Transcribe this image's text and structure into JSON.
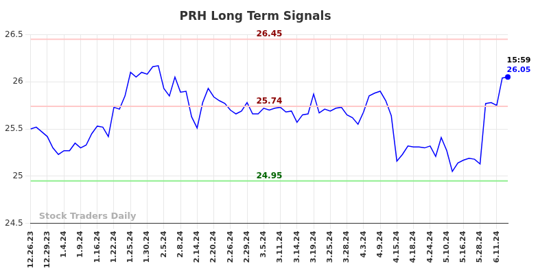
{
  "chart_data": {
    "type": "line",
    "title": "PRH Long Term Signals",
    "categories": [
      "12.26.23",
      null,
      null,
      "12.29.23",
      null,
      null,
      "1.4.24",
      null,
      null,
      "1.9.24",
      null,
      null,
      "1.16.24",
      null,
      null,
      "1.22.24",
      null,
      null,
      "1.25.24",
      null,
      null,
      "1.30.24",
      null,
      null,
      "2.5.24",
      null,
      null,
      "2.8.24",
      null,
      null,
      "2.14.24",
      null,
      null,
      "2.20.24",
      null,
      null,
      "2.26.24",
      null,
      null,
      "2.29.24",
      null,
      null,
      "3.5.24",
      null,
      null,
      "3.11.24",
      null,
      null,
      "3.14.24",
      null,
      null,
      "3.19.24",
      null,
      null,
      "3.25.24",
      null,
      null,
      "3.28.24",
      null,
      null,
      "4.3.24",
      null,
      null,
      "4.9.24",
      null,
      null,
      "4.15.24",
      null,
      null,
      "4.18.24",
      null,
      null,
      "4.24.24",
      null,
      null,
      "5.10.24",
      null,
      null,
      "5.16.24",
      null,
      null,
      "5.28.24",
      null,
      null,
      "6.11.24",
      null,
      null
    ],
    "values": [
      25.5,
      25.52,
      25.47,
      25.42,
      25.3,
      25.23,
      25.27,
      25.27,
      25.35,
      25.3,
      25.33,
      25.45,
      25.53,
      25.52,
      25.42,
      25.73,
      25.71,
      25.85,
      26.1,
      26.05,
      26.1,
      26.08,
      26.16,
      26.17,
      25.93,
      25.85,
      26.05,
      25.89,
      25.9,
      25.63,
      25.51,
      25.78,
      25.93,
      25.84,
      25.8,
      25.77,
      25.7,
      25.66,
      25.69,
      25.78,
      25.66,
      25.66,
      25.72,
      25.7,
      25.72,
      25.73,
      25.68,
      25.69,
      25.57,
      25.65,
      25.66,
      25.87,
      25.67,
      25.71,
      25.69,
      25.72,
      25.73,
      25.65,
      25.62,
      25.55,
      25.68,
      25.85,
      25.88,
      25.9,
      25.8,
      25.64,
      25.16,
      25.23,
      25.32,
      25.31,
      25.31,
      25.3,
      25.32,
      25.21,
      25.41,
      25.27,
      25.05,
      25.14,
      25.17,
      25.19,
      25.18,
      25.13,
      25.77,
      25.78,
      25.75,
      26.04,
      26.05
    ],
    "color": "#0000ff",
    "ylim": [
      24.5,
      26.5
    ],
    "yticks": [
      24.5,
      25,
      25.5,
      26,
      26.5
    ],
    "grid": true,
    "levels": [
      {
        "value": 26.45,
        "label": "26.45",
        "color": "#ffc8c8",
        "text_color": "#8b0000"
      },
      {
        "value": 25.74,
        "label": "25.74",
        "color": "#ffc8c8",
        "text_color": "#8b0000"
      },
      {
        "value": 24.95,
        "label": "24.95",
        "color": "#90ee90",
        "text_color": "#006400"
      }
    ],
    "last_point": {
      "time": "15:59",
      "value": 26.05,
      "label": "26.05"
    },
    "watermark": "Stock Traders Daily"
  }
}
